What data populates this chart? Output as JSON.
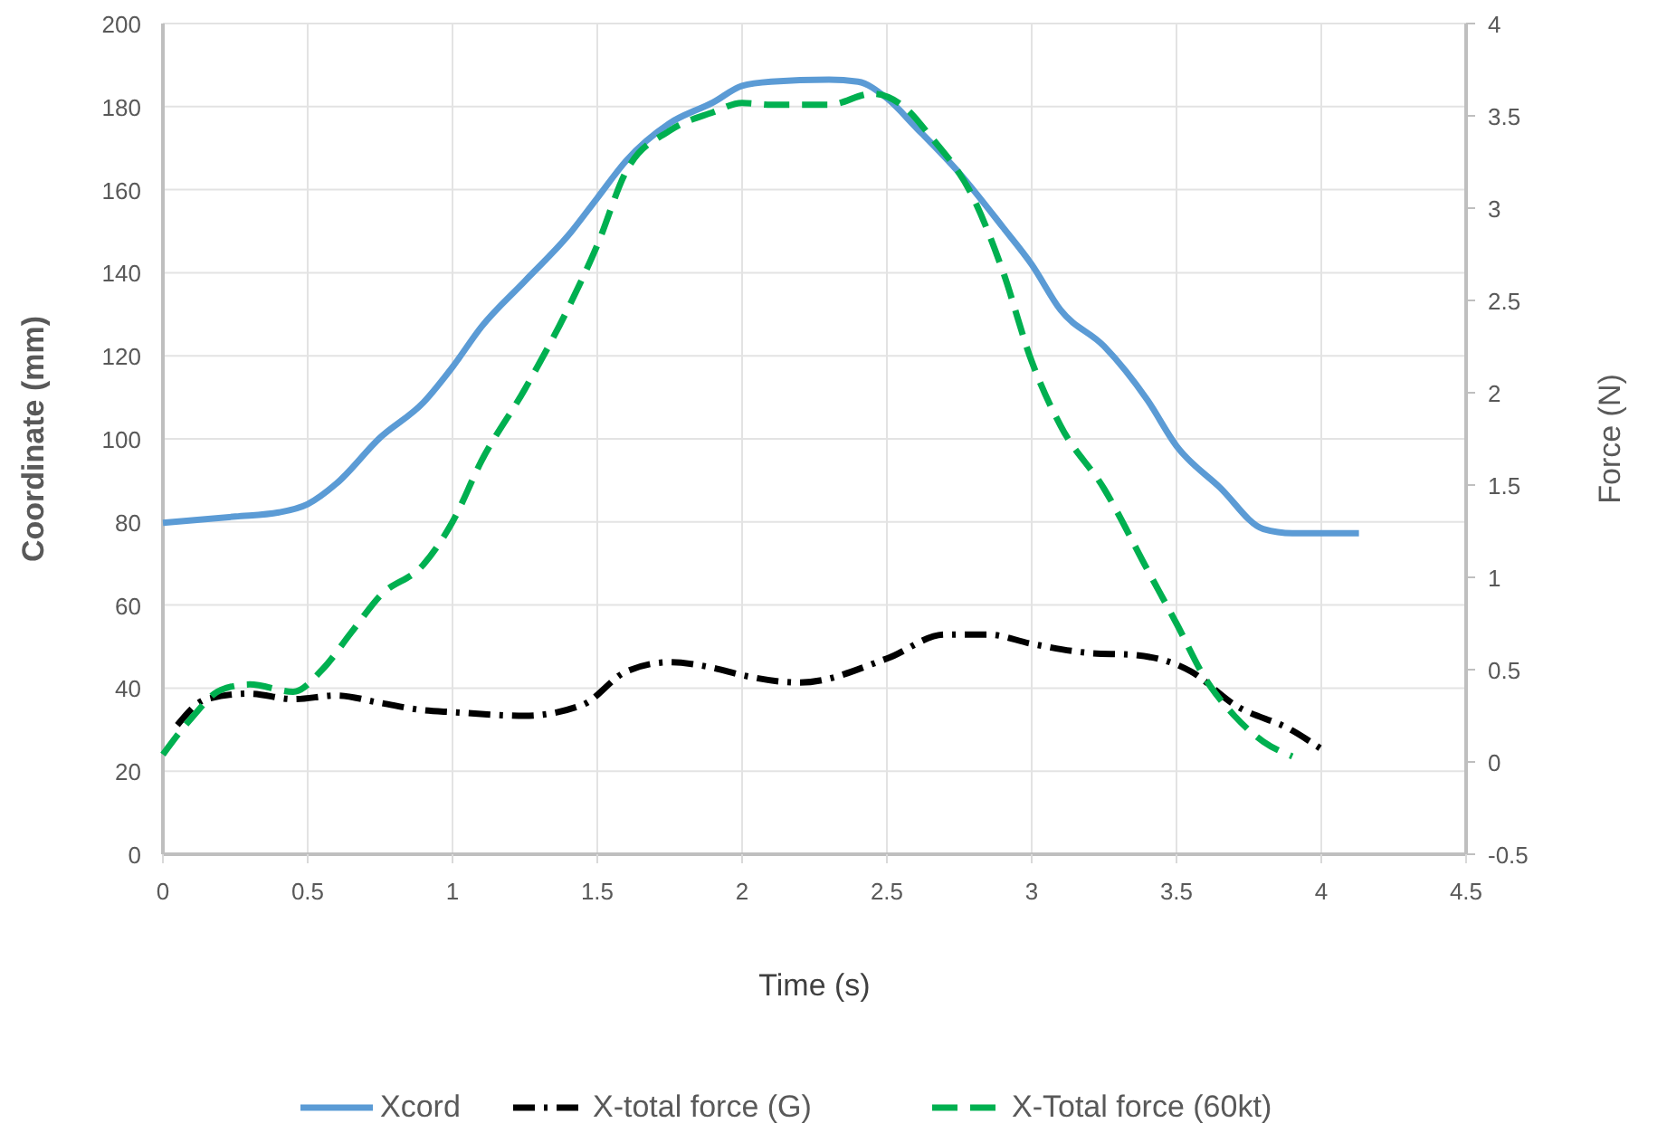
{
  "chart_data": {
    "type": "line",
    "xlabel": "Time (s)",
    "ylabel": "Coordinate (mm)",
    "y2label": "Force (N)",
    "xlim": [
      0,
      4.5
    ],
    "xticks": [
      0,
      0.5,
      1,
      1.5,
      2,
      2.5,
      3,
      3.5,
      4,
      4.5
    ],
    "ylim": [
      0,
      200
    ],
    "yticks": [
      0,
      20,
      40,
      60,
      80,
      100,
      120,
      140,
      160,
      180,
      200
    ],
    "y2lim": [
      -0.5,
      4
    ],
    "y2ticks": [
      -0.5,
      0,
      0.5,
      1,
      1.5,
      2,
      2.5,
      3,
      3.5,
      4
    ],
    "grid": true,
    "legend": "bottom",
    "marker": "none",
    "series": [
      {
        "name": "Xcord",
        "color": "#5b9bd5",
        "line_style": "solid",
        "x": [
          0,
          0.25,
          0.4,
          0.5,
          0.6,
          0.75,
          0.9,
          1,
          1.1,
          1.25,
          1.4,
          1.5,
          1.6,
          1.75,
          1.9,
          2,
          2.1,
          2.3,
          2.4,
          2.5,
          2.6,
          2.75,
          2.9,
          3,
          3.1,
          3.25,
          3.4,
          3.5,
          3.65,
          3.8,
          3.9,
          4.13
        ],
        "values": [
          79.8,
          81.3,
          82.3,
          84.3,
          89.3,
          100.3,
          108.8,
          117.3,
          127,
          138,
          149,
          158,
          167,
          176,
          181,
          185,
          186,
          186.5,
          186,
          182,
          175,
          164,
          151,
          142,
          131,
          122.3,
          109.3,
          98.3,
          88.3,
          78.3,
          77.3,
          77.3
        ]
      },
      {
        "name": "X-total force (G)",
        "color": "#000000",
        "line_style": "dashdot",
        "axis": "y2",
        "x": [
          0.05,
          0.15,
          0.3,
          0.45,
          0.6,
          0.75,
          0.9,
          1,
          1.25,
          1.45,
          1.6,
          1.75,
          1.9,
          2,
          2.2,
          2.5,
          2.7,
          2.85,
          3,
          3.2,
          3.35,
          3.55,
          3.7,
          3.9,
          4
        ],
        "values": [
          0.2,
          0.34,
          0.37,
          0.34,
          0.36,
          0.32,
          0.28,
          0.27,
          0.25,
          0.31,
          0.49,
          0.54,
          0.51,
          0.47,
          0.43,
          0.56,
          0.69,
          0.69,
          0.64,
          0.59,
          0.58,
          0.49,
          0.31,
          0.17,
          0.07
        ]
      },
      {
        "name": "X-Total force (60kt)",
        "color": "#00b050",
        "line_style": "dashed",
        "axis": "y2",
        "x": [
          0,
          0.1,
          0.2,
          0.3,
          0.45,
          0.55,
          0.65,
          0.75,
          0.9,
          1,
          1.1,
          1.25,
          1.4,
          1.5,
          1.6,
          1.75,
          1.9,
          2,
          2.1,
          2.3,
          2.45,
          2.55,
          2.65,
          2.8,
          2.9,
          3,
          3.1,
          3.25,
          3.4,
          3.5,
          3.6,
          3.7,
          3.8,
          3.9
        ],
        "values": [
          0.04,
          0.24,
          0.39,
          0.42,
          0.38,
          0.5,
          0.7,
          0.9,
          1.07,
          1.3,
          1.63,
          2.02,
          2.46,
          2.8,
          3.2,
          3.42,
          3.52,
          3.57,
          3.56,
          3.56,
          3.62,
          3.56,
          3.39,
          3.05,
          2.66,
          2.17,
          1.82,
          1.48,
          1.04,
          0.75,
          0.45,
          0.25,
          0.11,
          0.03
        ]
      }
    ]
  }
}
